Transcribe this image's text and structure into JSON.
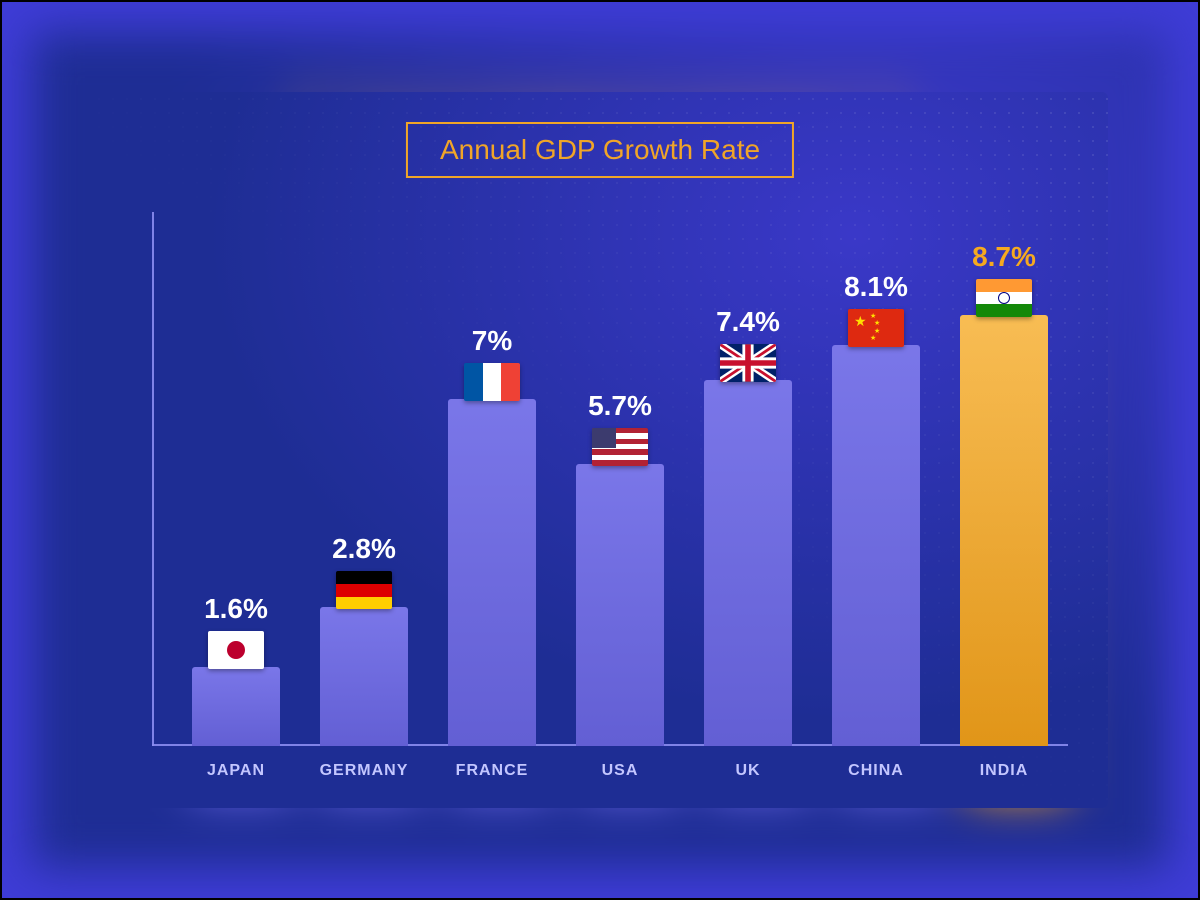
{
  "title": "Annual GDP Growth Rate",
  "background_outer": "#3e3cd6",
  "panel_bg_from": "#1e2d94",
  "panel_bg_to": "#3a38c8",
  "title_border": "#f0a528",
  "title_color": "#f0a528",
  "axis_color": "#8b8df0",
  "label_color": "#c3c6ff",
  "value_color_default": "#ffffff",
  "value_color_highlight": "#f6a920",
  "bar_color_default": "#6b67e6",
  "bar_color_highlight_from": "#f4a21a",
  "bar_color_highlight_to": "#f7b540",
  "value_fontsize": 28,
  "category_fontsize": 16,
  "title_fontsize": 28,
  "max_value": 10.5,
  "chart": {
    "type": "bar",
    "series": [
      {
        "category": "JAPAN",
        "value": 1.6,
        "display": "1.6%",
        "highlight": false,
        "flag": "japan"
      },
      {
        "category": "GERMANY",
        "value": 2.8,
        "display": "2.8%",
        "highlight": false,
        "flag": "germany"
      },
      {
        "category": "FRANCE",
        "value": 7.0,
        "display": "7%",
        "highlight": false,
        "flag": "france"
      },
      {
        "category": "USA",
        "value": 5.7,
        "display": "5.7%",
        "highlight": false,
        "flag": "usa"
      },
      {
        "category": "UK",
        "value": 7.4,
        "display": "7.4%",
        "highlight": false,
        "flag": "uk"
      },
      {
        "category": "CHINA",
        "value": 8.1,
        "display": "8.1%",
        "highlight": false,
        "flag": "china"
      },
      {
        "category": "INDIA",
        "value": 8.7,
        "display": "8.7%",
        "highlight": true,
        "flag": "india"
      }
    ]
  },
  "flags": {
    "japan": {
      "bg": "#ffffff",
      "circle": "#bc002d"
    },
    "germany": {
      "top": "#000000",
      "mid": "#dd0000",
      "bot": "#ffce00"
    },
    "france": {
      "l": "#0055a4",
      "c": "#ffffff",
      "r": "#ef4135"
    },
    "usa": {
      "stripeA": "#b22234",
      "stripeB": "#ffffff",
      "canton": "#3c3b6e"
    },
    "uk": {
      "bg": "#012169",
      "white": "#ffffff",
      "red": "#c8102e"
    },
    "china": {
      "bg": "#de2910",
      "star": "#ffde00"
    },
    "india": {
      "top": "#ff9933",
      "mid": "#ffffff",
      "bot": "#138808",
      "wheel": "#000080"
    }
  }
}
